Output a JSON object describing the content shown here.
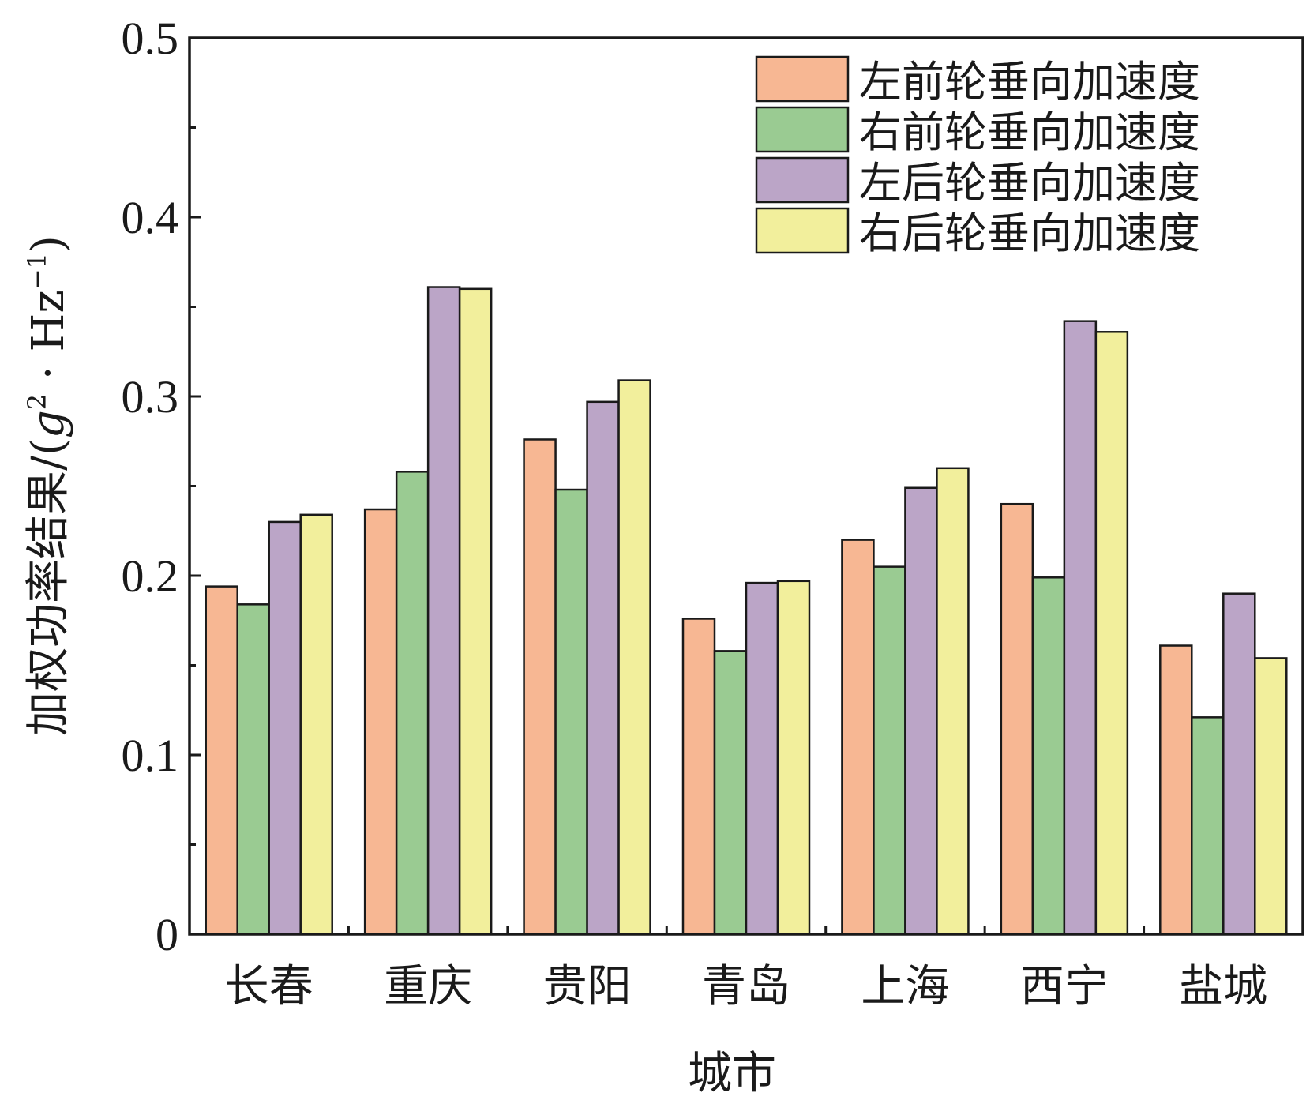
{
  "chart_data": {
    "type": "bar",
    "xlabel": "城市",
    "ylabel": {
      "prefix": "加权功率结果/(",
      "g": "g",
      "g_exp": "2",
      "dot": " · ",
      "hz": "Hz",
      "hz_exp": "−1",
      "suffix": ")"
    },
    "ylim": [
      0,
      0.5
    ],
    "yticks": [
      "0",
      "0.1",
      "0.2",
      "0.3",
      "0.4",
      "0.5"
    ],
    "categories": [
      "长春",
      "重庆",
      "贵阳",
      "青岛",
      "上海",
      "西宁",
      "盐城"
    ],
    "legend_position": "top-right",
    "grid": false,
    "series": [
      {
        "name": "左前轮垂向加速度",
        "color": "#f7b793",
        "values": [
          0.194,
          0.237,
          0.276,
          0.176,
          0.22,
          0.24,
          0.161
        ]
      },
      {
        "name": "右前轮垂向加速度",
        "color": "#9acb92",
        "values": [
          0.184,
          0.258,
          0.248,
          0.158,
          0.205,
          0.199,
          0.121
        ]
      },
      {
        "name": "左后轮垂向加速度",
        "color": "#bba5c7",
        "values": [
          0.23,
          0.361,
          0.297,
          0.196,
          0.249,
          0.342,
          0.19
        ]
      },
      {
        "name": "右后轮垂向加速度",
        "color": "#f2ef9c",
        "values": [
          0.234,
          0.36,
          0.309,
          0.197,
          0.26,
          0.336,
          0.154
        ]
      }
    ]
  }
}
